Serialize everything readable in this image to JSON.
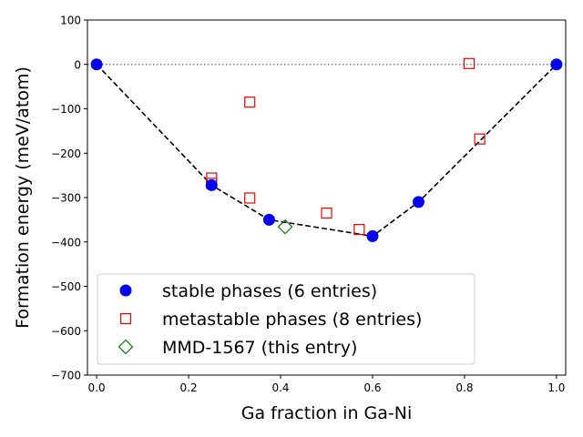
{
  "chart_data": {
    "type": "scatter",
    "xlabel": "Ga fraction in Ga-Ni",
    "ylabel": "Formation energy (meV/atom)",
    "xlim": [
      -0.02,
      1.02
    ],
    "ylim": [
      -700,
      100
    ],
    "xticks": [
      0.0,
      0.2,
      0.4,
      0.6,
      0.8,
      1.0
    ],
    "xtick_labels": [
      "0.0",
      "0.2",
      "0.4",
      "0.6",
      "0.8",
      "1.0"
    ],
    "yticks": [
      100,
      0,
      -100,
      -200,
      -300,
      -400,
      -500,
      -600,
      -700
    ],
    "ytick_labels": [
      "100",
      "0",
      "−100",
      "−200",
      "−300",
      "−400",
      "−500",
      "−600",
      "−700"
    ],
    "grid": false,
    "legend_position": "lower-left",
    "zero_line": {
      "y": 0,
      "style": "dotted",
      "color": "#808080"
    },
    "hull": {
      "style": "dashed",
      "color": "#000000",
      "points": [
        {
          "x": 0.0,
          "y": 0
        },
        {
          "x": 0.25,
          "y": -272
        },
        {
          "x": 0.375,
          "y": -350
        },
        {
          "x": 0.6,
          "y": -387
        },
        {
          "x": 0.7,
          "y": -310
        },
        {
          "x": 1.0,
          "y": 0
        }
      ]
    },
    "series": [
      {
        "name": "stable phases (6 entries)",
        "marker": "circle",
        "color": "#0000ee",
        "points": [
          {
            "x": 0.0,
            "y": 0
          },
          {
            "x": 0.25,
            "y": -272
          },
          {
            "x": 0.375,
            "y": -350
          },
          {
            "x": 0.6,
            "y": -387
          },
          {
            "x": 0.7,
            "y": -310
          },
          {
            "x": 1.0,
            "y": 0
          }
        ]
      },
      {
        "name": "metastable phases (8 entries)",
        "marker": "square",
        "color": "#ee0000",
        "points": [
          {
            "x": 0.25,
            "y": -256
          },
          {
            "x": 0.25,
            "y": -268
          },
          {
            "x": 0.333,
            "y": -85
          },
          {
            "x": 0.333,
            "y": -301
          },
          {
            "x": 0.5,
            "y": -335
          },
          {
            "x": 0.571,
            "y": -372
          },
          {
            "x": 0.81,
            "y": 2
          },
          {
            "x": 0.833,
            "y": -168
          }
        ]
      },
      {
        "name": "MMD-1567 (this entry)",
        "marker": "diamond",
        "color": "#008000",
        "points": [
          {
            "x": 0.41,
            "y": -366
          }
        ]
      }
    ]
  }
}
